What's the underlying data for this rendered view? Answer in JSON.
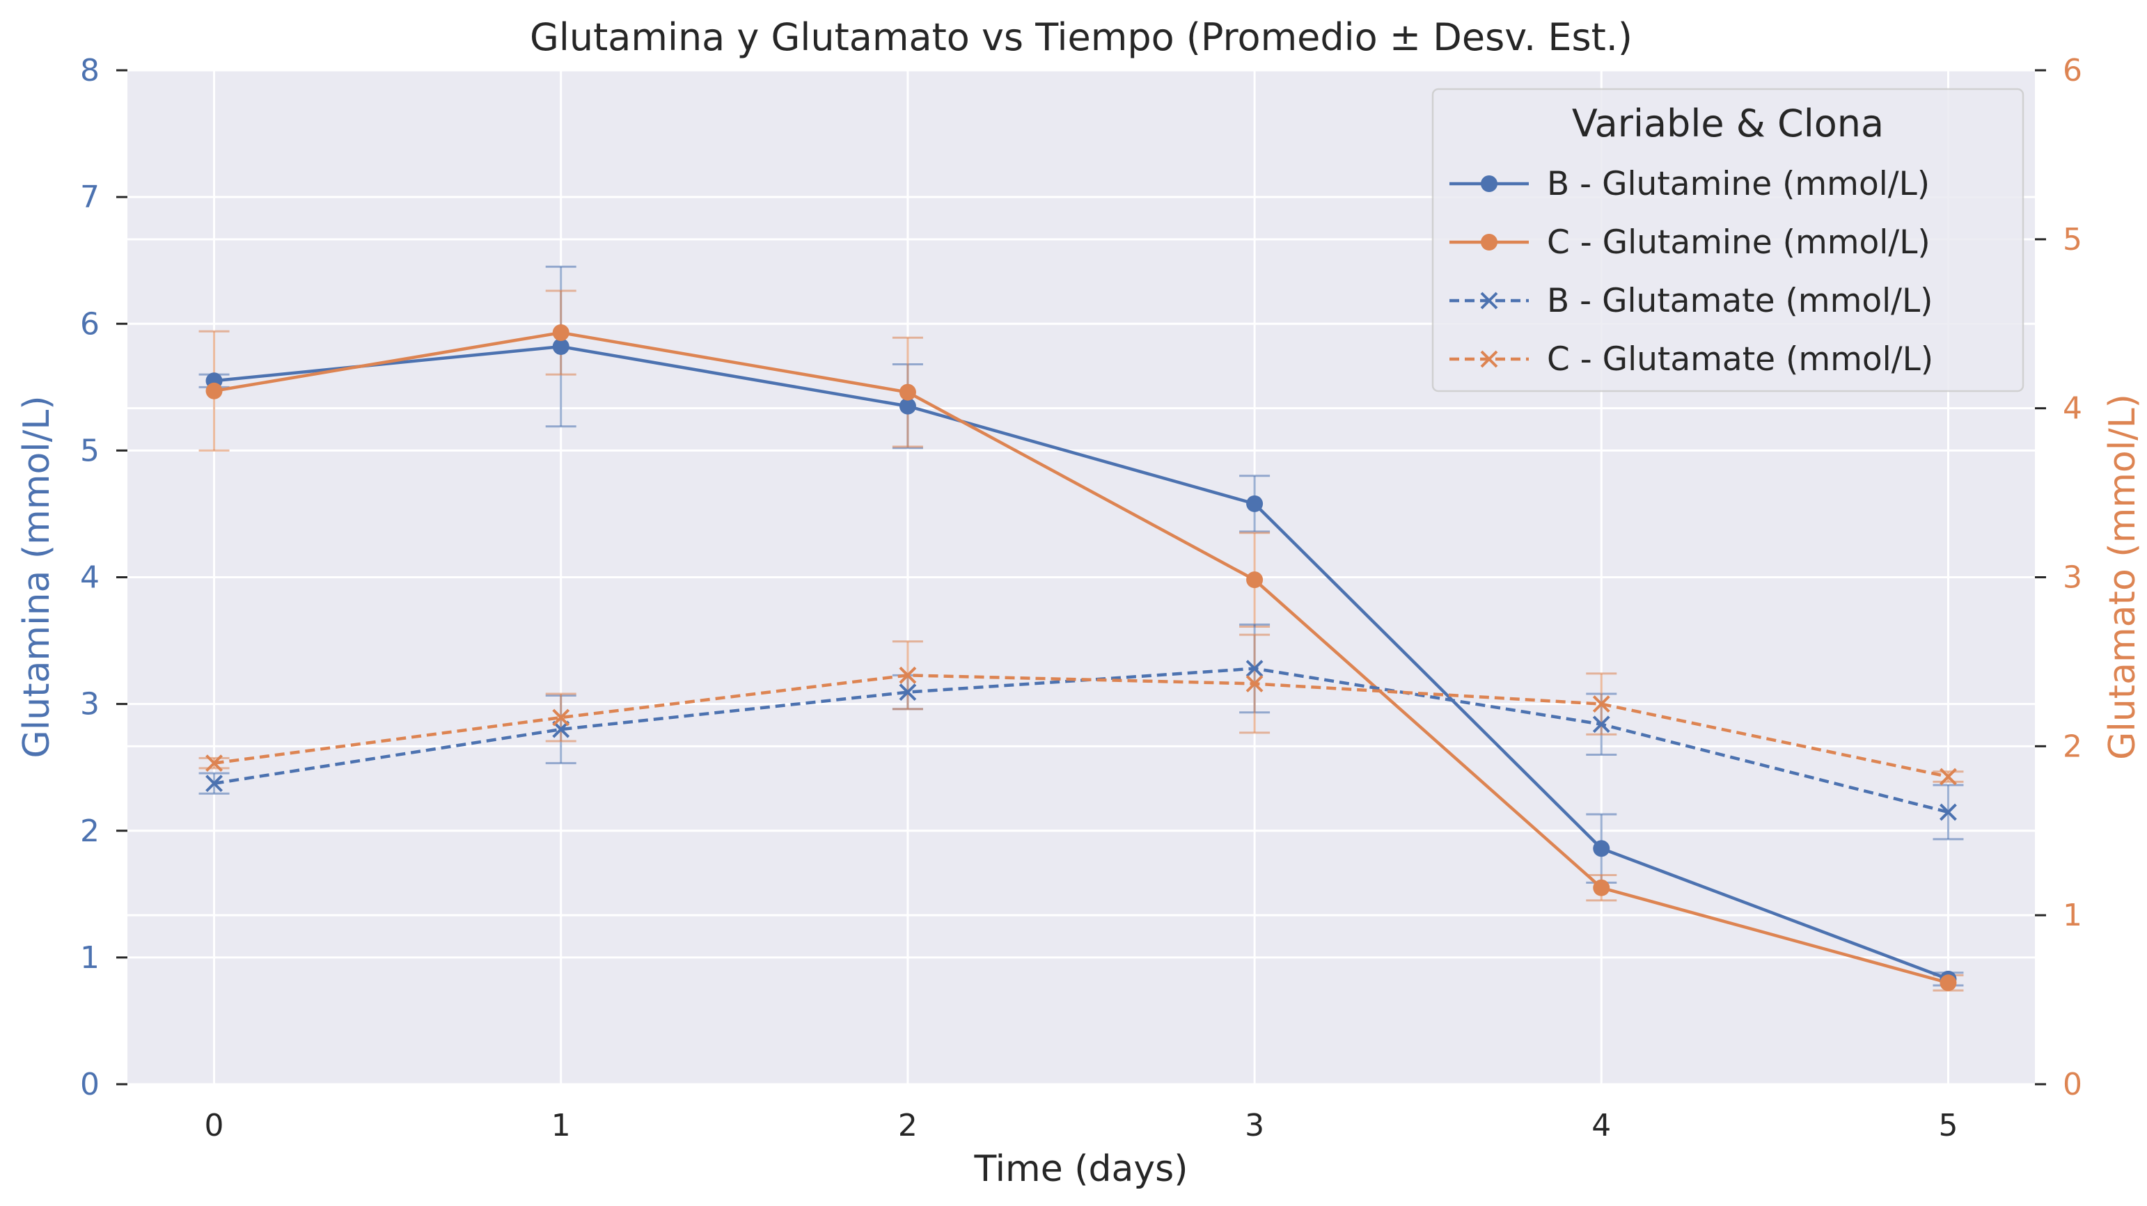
{
  "chart_data": {
    "type": "line",
    "title": "Glutamina y Glutamato vs Tiempo (Promedio ± Desv. Est.)",
    "xlabel": "Time (days)",
    "ylabel_left": "Glutamina (mmol/L)",
    "ylabel_right": "Glutamato (mmol/L)",
    "x": [
      0,
      1,
      2,
      3,
      4,
      5
    ],
    "x_ticks": [
      "0",
      "1",
      "2",
      "3",
      "4",
      "5"
    ],
    "xlim": [
      -0.25,
      5.25
    ],
    "ylim_left": [
      0,
      8
    ],
    "ylim_right": [
      0,
      6
    ],
    "y_ticks_left": [
      "0",
      "1",
      "2",
      "3",
      "4",
      "5",
      "6",
      "7",
      "8"
    ],
    "y_ticks_right": [
      "0",
      "1",
      "2",
      "3",
      "4",
      "5",
      "6"
    ],
    "grid": true,
    "colors": {
      "B": "#4C72B0",
      "C": "#DD8452",
      "text": "#262626"
    },
    "legend": {
      "title": "Variable & Clona",
      "position": "top-right"
    },
    "series": [
      {
        "name": "B - Glutamine (mmol/L)",
        "axis": "left",
        "color": "#4C72B0",
        "marker": "circle",
        "linestyle": "solid",
        "values": [
          5.55,
          5.82,
          5.35,
          4.58,
          1.86,
          0.83
        ],
        "errors": [
          0.05,
          0.63,
          0.33,
          0.22,
          0.27,
          0.05
        ]
      },
      {
        "name": "C - Glutamine (mmol/L)",
        "axis": "left",
        "color": "#DD8452",
        "marker": "circle",
        "linestyle": "solid",
        "values": [
          5.47,
          5.93,
          5.46,
          3.98,
          1.55,
          0.8
        ],
        "errors": [
          0.47,
          0.33,
          0.43,
          0.37,
          0.1,
          0.06
        ]
      },
      {
        "name": "B - Glutamate (mmol/L)",
        "axis": "right",
        "color": "#4C72B0",
        "marker": "x",
        "linestyle": "dashed",
        "values": [
          1.78,
          2.1,
          2.32,
          2.46,
          2.13,
          1.61
        ],
        "errors": [
          0.06,
          0.2,
          0.1,
          0.26,
          0.18,
          0.16
        ]
      },
      {
        "name": "C - Glutamate (mmol/L)",
        "axis": "right",
        "color": "#DD8452",
        "marker": "x",
        "linestyle": "dashed",
        "values": [
          1.9,
          2.17,
          2.42,
          2.37,
          2.25,
          1.82
        ],
        "errors": [
          0.03,
          0.14,
          0.2,
          0.29,
          0.18,
          0.03
        ]
      }
    ]
  }
}
